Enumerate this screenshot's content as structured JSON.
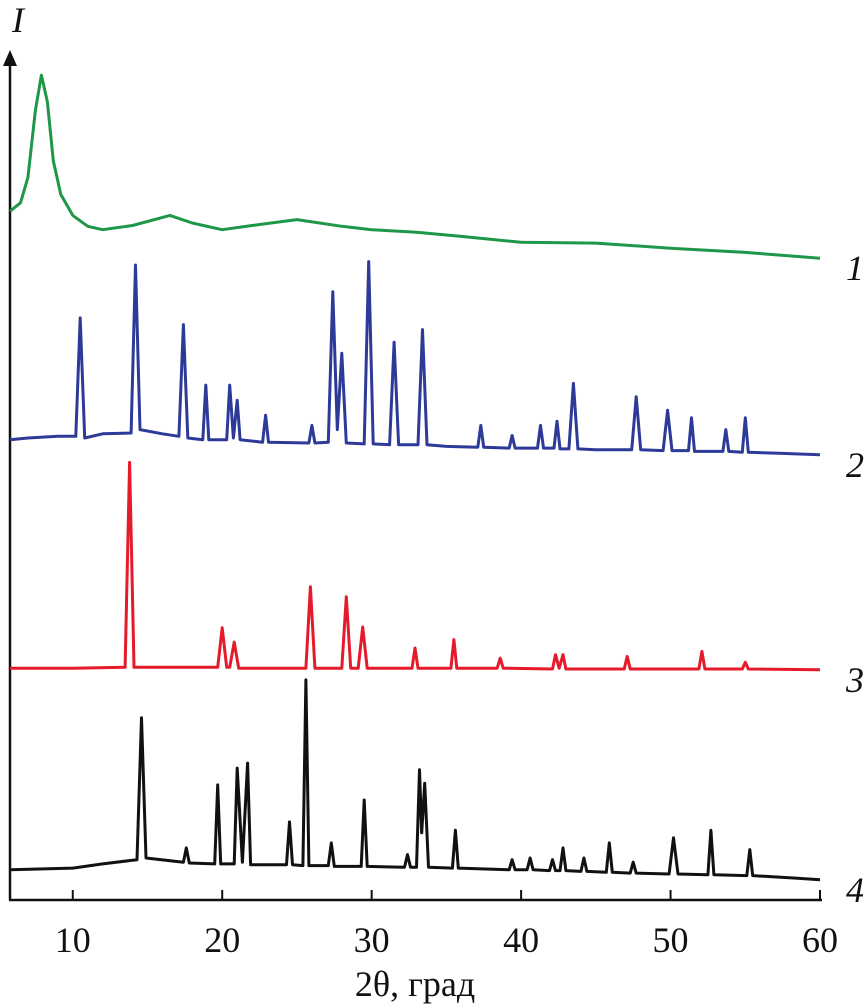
{
  "chart_data": {
    "type": "line",
    "ylabel": "I",
    "xlabel": "2θ, град",
    "xlim": [
      5.8,
      60
    ],
    "xticks": [
      10,
      20,
      30,
      40,
      50,
      60
    ],
    "ylim": [
      0,
      100
    ],
    "series": [
      {
        "name": "1",
        "color": "#1e9848",
        "x": [
          5.8,
          6.5,
          7,
          7.5,
          7.9,
          8.3,
          8.7,
          9.2,
          10,
          11,
          12,
          14,
          16.5,
          18,
          20,
          22,
          25,
          28,
          30,
          33,
          36,
          40,
          45,
          50,
          55,
          60
        ],
        "values": [
          82,
          83,
          86,
          94,
          98.2,
          95,
          88,
          84,
          81.5,
          80.2,
          79.8,
          80.3,
          81.5,
          80.6,
          79.8,
          80.3,
          81,
          80.2,
          79.8,
          79.5,
          79,
          78.3,
          78.2,
          77.6,
          77.1,
          76.4
        ]
      },
      {
        "name": "2",
        "color": "#2d3a98",
        "x": [
          5.8,
          7,
          9,
          10.2,
          10.5,
          10.8,
          12,
          13.9,
          14.2,
          14.5,
          16,
          17.1,
          17.4,
          17.7,
          18.7,
          18.9,
          19.1,
          20.3,
          20.5,
          20.75,
          21,
          21.2,
          22.7,
          22.9,
          23.1,
          25.8,
          26,
          26.2,
          27.1,
          27.4,
          27.7,
          28,
          28.3,
          29.5,
          29.8,
          30.1,
          31.2,
          31.5,
          31.8,
          33.1,
          33.4,
          33.7,
          35,
          37.1,
          37.3,
          37.5,
          39.2,
          39.4,
          39.6,
          41.1,
          41.3,
          41.5,
          42.2,
          42.4,
          42.6,
          43.2,
          43.5,
          43.8,
          45,
          47.4,
          47.7,
          48,
          49.5,
          49.8,
          50.1,
          51.2,
          51.4,
          51.6,
          53.5,
          53.7,
          53.9,
          54.8,
          55,
          55.2,
          57,
          60
        ],
        "values": [
          54.8,
          55,
          55.2,
          55.2,
          69.3,
          55,
          55.5,
          55.6,
          75.6,
          56,
          55.5,
          55.2,
          68.5,
          55,
          54.8,
          61.3,
          54.8,
          54.8,
          61.3,
          55,
          59.5,
          54.8,
          54.5,
          57.7,
          54.5,
          54.4,
          56.5,
          54.4,
          54.5,
          72.4,
          56,
          65.1,
          54.4,
          54.3,
          76,
          54.3,
          54.2,
          66.4,
          54.2,
          54.2,
          67.9,
          54.2,
          54,
          53.9,
          56.5,
          53.9,
          53.8,
          55.3,
          53.8,
          53.8,
          56.5,
          53.8,
          53.8,
          57,
          53.7,
          53.7,
          61.5,
          53.7,
          53.6,
          53.6,
          59.9,
          53.6,
          53.5,
          58.3,
          53.5,
          53.5,
          57.4,
          53.4,
          53.4,
          56,
          53.4,
          53.3,
          57.4,
          53.3,
          53.2,
          53
        ]
      },
      {
        "name": "3",
        "color": "#e51b2b",
        "x": [
          5.8,
          10,
          13.5,
          13.8,
          14.1,
          19.7,
          20,
          20.3,
          20.5,
          20.8,
          21.1,
          25.6,
          25.9,
          26.2,
          28,
          28.3,
          28.6,
          29.1,
          29.4,
          29.7,
          32.7,
          32.9,
          33.1,
          35.3,
          35.5,
          35.7,
          38.4,
          38.6,
          38.8,
          42.1,
          42.3,
          42.55,
          42.8,
          43,
          46.9,
          47.1,
          47.3,
          51.9,
          52.1,
          52.3,
          54.8,
          55,
          55.2,
          60
        ],
        "values": [
          27.6,
          27.6,
          27.7,
          52.1,
          27.7,
          27.7,
          32.4,
          27.7,
          27.7,
          30.7,
          27.6,
          27.6,
          37.3,
          27.6,
          27.6,
          36.1,
          27.6,
          27.6,
          32.5,
          27.6,
          27.6,
          30,
          27.6,
          27.6,
          31,
          27.6,
          27.6,
          28.8,
          27.6,
          27.5,
          29.2,
          27.6,
          29.2,
          27.5,
          27.5,
          29,
          27.5,
          27.5,
          29.6,
          27.5,
          27.5,
          28.3,
          27.5,
          27.4
        ]
      },
      {
        "name": "4",
        "color": "#111111",
        "x": [
          5.8,
          10,
          12,
          14.3,
          14.6,
          14.9,
          17.4,
          17.6,
          17.8,
          19.5,
          19.7,
          19.9,
          20.8,
          21,
          21.35,
          21.7,
          21.9,
          24.3,
          24.5,
          24.7,
          25.4,
          25.6,
          25.8,
          27.1,
          27.3,
          27.5,
          29.3,
          29.5,
          29.7,
          32.2,
          32.4,
          32.6,
          33,
          33.2,
          33.35,
          33.55,
          33.8,
          35.4,
          35.6,
          35.8,
          39.2,
          39.4,
          39.6,
          40.4,
          40.6,
          40.8,
          41.9,
          42.1,
          42.3,
          42.6,
          42.8,
          43,
          44,
          44.2,
          44.4,
          45.7,
          45.9,
          46.1,
          47.3,
          47.5,
          47.7,
          49.9,
          50.2,
          50.5,
          52.5,
          52.7,
          52.9,
          55.1,
          55.3,
          55.5,
          58.5,
          60
        ],
        "values": [
          3.6,
          3.8,
          4.3,
          4.8,
          21.7,
          5,
          4.5,
          6.2,
          4.4,
          4.3,
          13.7,
          4.3,
          4.3,
          15.7,
          4.5,
          16.3,
          4.2,
          4.2,
          9.3,
          4.2,
          4.1,
          26.2,
          4.1,
          4.1,
          6.8,
          4,
          4,
          11.9,
          4,
          3.9,
          5.4,
          3.9,
          3.9,
          15.5,
          8,
          13.9,
          3.9,
          3.8,
          8.3,
          3.8,
          3.6,
          4.8,
          3.6,
          3.6,
          5,
          3.6,
          3.5,
          4.8,
          3.5,
          3.5,
          6.2,
          3.5,
          3.4,
          5,
          3.4,
          3.3,
          6.8,
          3.3,
          3.2,
          4.5,
          3.2,
          3.1,
          7.4,
          3.1,
          3,
          8.3,
          3,
          2.9,
          6,
          2.9,
          2.6,
          2.4
        ]
      }
    ]
  }
}
